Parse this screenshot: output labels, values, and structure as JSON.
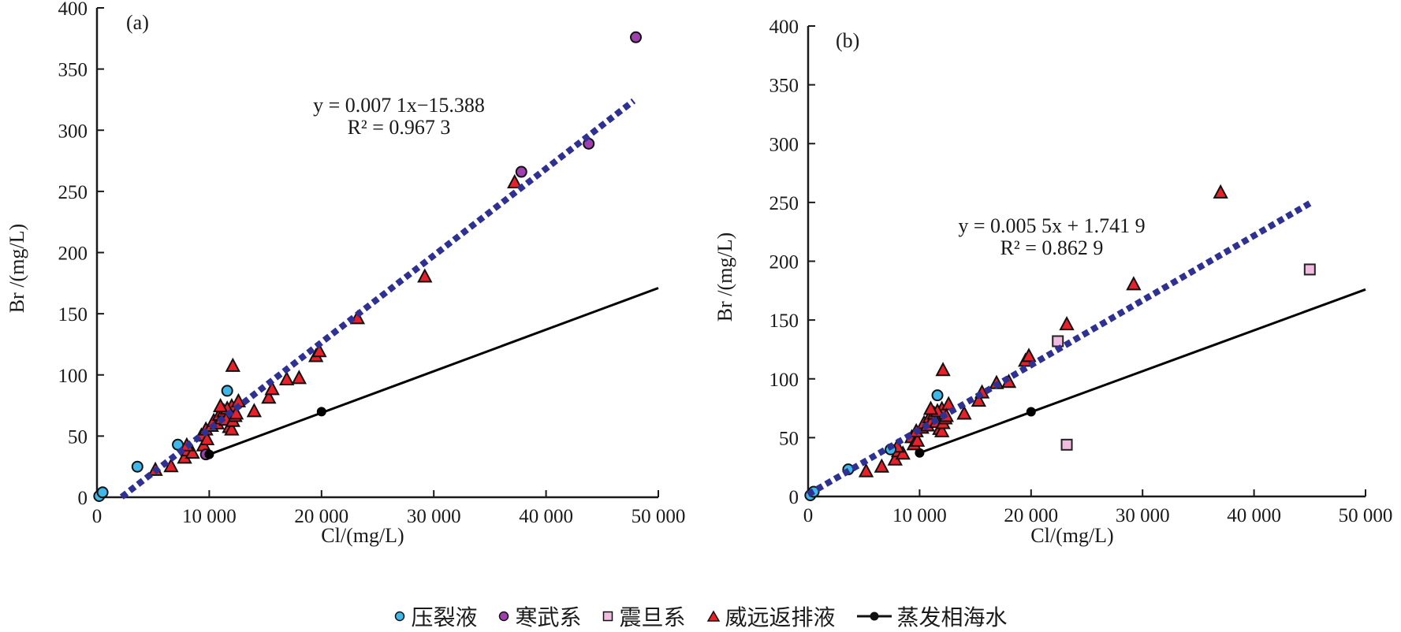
{
  "chart_data": [
    {
      "type": "scatter",
      "panel_label": "(a)",
      "xlabel": "Cl/(mg/L)",
      "ylabel": "Br /(mg/L)",
      "xlim": [
        0,
        50000
      ],
      "ylim": [
        0,
        400
      ],
      "x_ticks": [
        0,
        10000,
        20000,
        30000,
        40000,
        50000
      ],
      "x_tick_labels": [
        "0",
        "10 000",
        "20 000",
        "30 000",
        "40 000",
        "50 000"
      ],
      "y_ticks": [
        0,
        50,
        100,
        150,
        200,
        250,
        300,
        350,
        400
      ],
      "y_tick_labels": [
        "0",
        "50",
        "100",
        "150",
        "200",
        "250",
        "300",
        "350",
        "400"
      ],
      "grid": false,
      "equation": "y = 0.007 1x−15.388",
      "r_squared": "R² = 0.967 3",
      "trendline": {
        "slope": 0.0071,
        "intercept": -15.388,
        "x_range": [
          2200,
          47800
        ],
        "color": "#2e3192"
      },
      "series": [
        {
          "name": "压裂液",
          "marker": "circle",
          "color": "#3db8e8",
          "points": [
            [
              200,
              1
            ],
            [
              500,
              4
            ],
            [
              3600,
              25
            ],
            [
              7200,
              43
            ],
            [
              11600,
              87
            ]
          ]
        },
        {
          "name": "寒武系",
          "marker": "circle",
          "color": "#a040b0",
          "points": [
            [
              9700,
              35
            ],
            [
              37800,
              266
            ],
            [
              43800,
              289
            ],
            [
              48000,
              376
            ]
          ]
        },
        {
          "name": "震旦系",
          "marker": "square",
          "color": "#f0bde0",
          "points": []
        },
        {
          "name": "威远返排液",
          "marker": "triangle",
          "color": "#e8202a",
          "points": [
            [
              5200,
              22
            ],
            [
              6600,
              25
            ],
            [
              7800,
              32
            ],
            [
              8100,
              38
            ],
            [
              8500,
              36
            ],
            [
              8000,
              42
            ],
            [
              9300,
              50
            ],
            [
              9500,
              42
            ],
            [
              9800,
              47
            ],
            [
              9700,
              55
            ],
            [
              10200,
              58
            ],
            [
              10400,
              62
            ],
            [
              10700,
              60
            ],
            [
              10900,
              67
            ],
            [
              11100,
              64
            ],
            [
              11300,
              70
            ],
            [
              11500,
              63
            ],
            [
              11800,
              57
            ],
            [
              12000,
              55
            ],
            [
              12100,
              62
            ],
            [
              12300,
              66
            ],
            [
              12000,
              74
            ],
            [
              11600,
              72
            ],
            [
              12600,
              78
            ],
            [
              12400,
              68
            ],
            [
              11000,
              74
            ],
            [
              12100,
              107
            ],
            [
              14000,
              70
            ],
            [
              15300,
              81
            ],
            [
              15600,
              88
            ],
            [
              16900,
              96
            ],
            [
              18000,
              97
            ],
            [
              19500,
              115
            ],
            [
              19800,
              119
            ],
            [
              23200,
              146
            ],
            [
              29200,
              180
            ],
            [
              37200,
              257
            ]
          ]
        },
        {
          "name": "蒸发相海水",
          "marker": "line-dot",
          "color": "#000000",
          "points": [
            [
              10000,
              35
            ],
            [
              20000,
              70
            ]
          ],
          "line_x_range": [
            10000,
            50000
          ],
          "line_y_range": [
            35,
            171
          ]
        }
      ]
    },
    {
      "type": "scatter",
      "panel_label": "(b)",
      "xlabel": "Cl/(mg/L)",
      "ylabel": "Br /(mg/L)",
      "xlim": [
        0,
        50000
      ],
      "ylim": [
        0,
        400
      ],
      "x_ticks": [
        0,
        10000,
        20000,
        30000,
        40000,
        50000
      ],
      "x_tick_labels": [
        "0",
        "10 000",
        "20 000",
        "30 000",
        "40 000",
        "50 000"
      ],
      "y_ticks": [
        0,
        50,
        100,
        150,
        200,
        250,
        300,
        350,
        400
      ],
      "y_tick_labels": [
        "0",
        "50",
        "100",
        "150",
        "200",
        "250",
        "300",
        "350",
        "400"
      ],
      "grid": false,
      "equation": "y = 0.005 5x + 1.741 9",
      "r_squared": "R² = 0.862 9",
      "trendline": {
        "slope": 0.0055,
        "intercept": 1.7419,
        "x_range": [
          0,
          45000
        ],
        "color": "#2e3192"
      },
      "series": [
        {
          "name": "压裂液",
          "marker": "circle",
          "color": "#3db8e8",
          "points": [
            [
              200,
              1
            ],
            [
              500,
              4
            ],
            [
              3600,
              23
            ],
            [
              7400,
              40
            ],
            [
              11600,
              86
            ]
          ]
        },
        {
          "name": "寒武系",
          "marker": "circle",
          "color": "#a040b0",
          "points": []
        },
        {
          "name": "震旦系",
          "marker": "square",
          "color": "#f0bde0",
          "points": [
            [
              22400,
              132
            ],
            [
              23200,
              44
            ],
            [
              45000,
              193
            ]
          ]
        },
        {
          "name": "威远返排液",
          "marker": "triangle",
          "color": "#e8202a",
          "points": [
            [
              5200,
              21
            ],
            [
              6600,
              25
            ],
            [
              7800,
              31
            ],
            [
              8100,
              38
            ],
            [
              8500,
              36
            ],
            [
              8000,
              42
            ],
            [
              9300,
              50
            ],
            [
              9500,
              44
            ],
            [
              9800,
              47
            ],
            [
              9700,
              55
            ],
            [
              10200,
              58
            ],
            [
              10400,
              62
            ],
            [
              10700,
              60
            ],
            [
              10900,
              67
            ],
            [
              11100,
              64
            ],
            [
              11300,
              70
            ],
            [
              11500,
              63
            ],
            [
              11800,
              57
            ],
            [
              12000,
              55
            ],
            [
              12100,
              62
            ],
            [
              12300,
              66
            ],
            [
              12000,
              74
            ],
            [
              11600,
              72
            ],
            [
              12600,
              78
            ],
            [
              12400,
              68
            ],
            [
              11000,
              74
            ],
            [
              12100,
              107
            ],
            [
              14000,
              70
            ],
            [
              15300,
              81
            ],
            [
              15600,
              88
            ],
            [
              16900,
              96
            ],
            [
              18000,
              97
            ],
            [
              19500,
              115
            ],
            [
              19800,
              119
            ],
            [
              23200,
              146
            ],
            [
              29200,
              180
            ],
            [
              37000,
              258
            ]
          ]
        },
        {
          "name": "蒸发相海水",
          "marker": "line-dot",
          "color": "#000000",
          "points": [
            [
              10000,
              37
            ],
            [
              20000,
              72
            ]
          ],
          "line_x_range": [
            10000,
            50000
          ],
          "line_y_range": [
            37,
            176
          ]
        }
      ]
    }
  ],
  "legend": {
    "placement": "bottom-center",
    "items": [
      {
        "label": "压裂液",
        "marker": "circle",
        "color": "#3db8e8"
      },
      {
        "label": "寒武系",
        "marker": "circle",
        "color": "#a040b0"
      },
      {
        "label": "震旦系",
        "marker": "square",
        "color": "#f0bde0"
      },
      {
        "label": "威远返排液",
        "marker": "triangle",
        "color": "#e8202a"
      },
      {
        "label": "蒸发相海水",
        "marker": "line-dot",
        "color": "#000000"
      }
    ]
  }
}
